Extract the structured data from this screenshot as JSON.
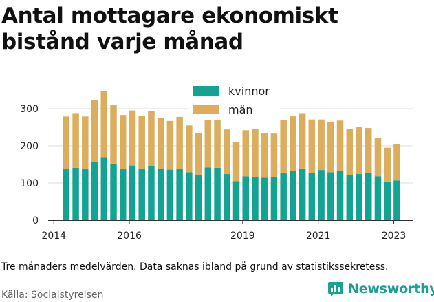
{
  "title": "Antal mottagare ekonomiskt bistånd varje månad",
  "caption": "Tre månaders medelvärden. Data saknas ibland på grund av statistikssekretess.",
  "source": "Källa: Socialstyrelsen",
  "logo": {
    "text": "Newsworthy",
    "icon": "bar-chart-logo-icon",
    "color": "#1aa291"
  },
  "chart_data": {
    "type": "bar",
    "stacked": true,
    "x_start": 2014.33,
    "x_step": 0.25,
    "xlim": [
      2013.85,
      2023.5
    ],
    "ylim": [
      0,
      350
    ],
    "yticks": [
      0,
      100,
      200,
      300
    ],
    "xticks": [
      2014,
      2016,
      2019,
      2021,
      2023
    ],
    "xlabel": "",
    "ylabel": "",
    "grid": "horizontal",
    "legend": "top-center",
    "series": [
      {
        "name": "kvinnor",
        "color": "#13a393",
        "values": [
          137,
          141,
          139,
          156,
          170,
          152,
          138,
          147,
          139,
          145,
          138,
          136,
          138,
          129,
          121,
          142,
          141,
          124,
          105,
          118,
          115,
          114,
          115,
          128,
          132,
          139,
          126,
          135,
          129,
          132,
          122,
          124,
          127,
          118,
          104,
          107
        ]
      },
      {
        "name": "män",
        "color": "#dcad5d",
        "values": [
          142,
          147,
          140,
          168,
          178,
          158,
          145,
          148,
          141,
          148,
          136,
          131,
          140,
          126,
          114,
          134,
          140,
          120,
          106,
          124,
          130,
          120,
          118,
          141,
          148,
          149,
          145,
          136,
          136,
          136,
          123,
          126,
          121,
          103,
          91,
          98
        ]
      }
    ]
  }
}
